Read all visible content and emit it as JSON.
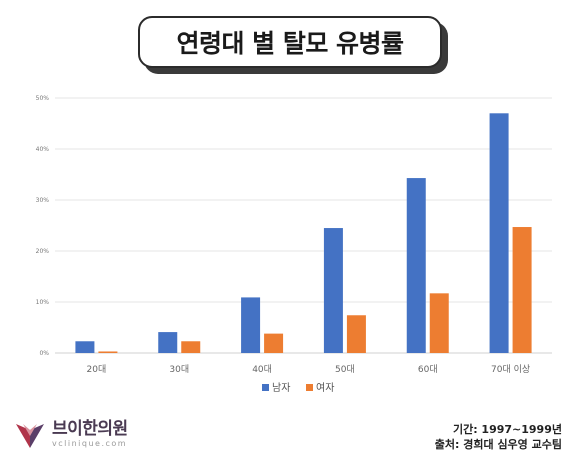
{
  "title": "연령대 별 탈모 유병률",
  "chart_data": {
    "type": "bar",
    "categories": [
      "20대",
      "30대",
      "40대",
      "50대",
      "60대",
      "70대 이상"
    ],
    "series": [
      {
        "name": "남자",
        "values": [
          2.3,
          4.1,
          10.9,
          24.5,
          34.3,
          47.0
        ],
        "color": "#4472c4"
      },
      {
        "name": "여자",
        "values": [
          0.3,
          2.3,
          3.8,
          7.4,
          11.7,
          24.7
        ],
        "color": "#ed7d31"
      }
    ],
    "yticks": [
      "0%",
      "10%",
      "20%",
      "30%",
      "40%",
      "50%"
    ],
    "ylim": [
      0,
      50
    ],
    "grid": true,
    "legend": "bottom"
  },
  "brand": {
    "name": "브이한의원",
    "url": "vclinique.com"
  },
  "source": {
    "period": "기간: 1997~1999년",
    "origin": "출처: 경희대 심우영 교수팀"
  }
}
